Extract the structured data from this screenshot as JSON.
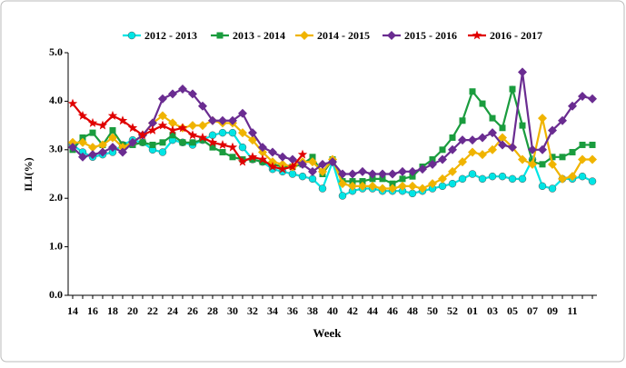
{
  "chart_data": {
    "type": "line",
    "x_label": "Week",
    "y_label": "ILI(%)",
    "categories": [
      "14",
      null,
      "16",
      null,
      "18",
      null,
      "20",
      null,
      "22",
      null,
      "24",
      null,
      "26",
      null,
      "28",
      null,
      "30",
      null,
      "32",
      null,
      "34",
      null,
      "36",
      null,
      "38",
      null,
      "40",
      null,
      "42",
      null,
      "44",
      null,
      "46",
      null,
      "48",
      null,
      "50",
      null,
      "52",
      null,
      "01",
      null,
      "03",
      null,
      "05",
      null,
      "07",
      null,
      "09",
      null,
      "11",
      null,
      null
    ],
    "ylim": [
      0,
      5
    ],
    "yticks": [
      {
        "value": 0,
        "label": "0.0"
      },
      {
        "value": 1,
        "label": "1.0"
      },
      {
        "value": 2,
        "label": "2.0"
      },
      {
        "value": 3,
        "label": "3.0"
      },
      {
        "value": 4,
        "label": "4.0"
      },
      {
        "value": 5,
        "label": "5.0"
      }
    ],
    "series": [
      {
        "name": "2012 - 2013",
        "color": "#00e5e5",
        "marker": "circle",
        "values": [
          3.1,
          2.95,
          2.85,
          2.9,
          2.95,
          3.1,
          3.2,
          3.15,
          3.0,
          2.95,
          3.2,
          3.15,
          3.1,
          3.2,
          3.3,
          3.35,
          3.35,
          3.05,
          2.8,
          2.75,
          2.6,
          2.55,
          2.5,
          2.45,
          2.4,
          2.2,
          2.75,
          2.05,
          2.15,
          2.2,
          2.2,
          2.15,
          2.15,
          2.15,
          2.1,
          2.15,
          2.2,
          2.25,
          2.3,
          2.4,
          2.5,
          2.4,
          2.45,
          2.45,
          2.4,
          2.4,
          2.8,
          2.25,
          2.2,
          2.4,
          2.4,
          2.45,
          2.35
        ]
      },
      {
        "name": "2013 - 2014",
        "color": "#1a9c3e",
        "marker": "square",
        "values": [
          3.0,
          3.25,
          3.35,
          3.1,
          3.4,
          3.1,
          3.1,
          3.15,
          3.1,
          3.15,
          3.3,
          3.15,
          3.15,
          3.2,
          3.05,
          2.95,
          2.85,
          2.8,
          2.8,
          2.75,
          2.7,
          2.65,
          2.65,
          2.7,
          2.85,
          2.5,
          2.8,
          2.35,
          2.35,
          2.35,
          2.4,
          2.4,
          2.3,
          2.4,
          2.45,
          2.65,
          2.8,
          3.0,
          3.25,
          3.6,
          4.2,
          3.95,
          3.65,
          3.45,
          4.25,
          3.5,
          2.75,
          2.7,
          2.85,
          2.85,
          2.95,
          3.1,
          3.1
        ]
      },
      {
        "name": "2014 - 2015",
        "color": "#f0b400",
        "marker": "diamond",
        "values": [
          3.15,
          3.15,
          3.05,
          3.1,
          3.25,
          3.05,
          3.15,
          3.3,
          3.55,
          3.7,
          3.55,
          3.45,
          3.5,
          3.5,
          3.6,
          3.55,
          3.55,
          3.35,
          3.2,
          2.95,
          2.75,
          2.7,
          2.65,
          2.75,
          2.75,
          2.55,
          2.8,
          2.3,
          2.25,
          2.25,
          2.25,
          2.2,
          2.2,
          2.25,
          2.25,
          2.2,
          2.3,
          2.4,
          2.55,
          2.75,
          2.95,
          2.9,
          3.0,
          3.25,
          3.05,
          2.8,
          2.7,
          3.65,
          2.7,
          2.4,
          2.45,
          2.8,
          2.8
        ]
      },
      {
        "name": "2015 - 2016",
        "color": "#6a2c91",
        "marker": "diamond",
        "values": [
          3.05,
          2.85,
          2.9,
          2.95,
          3.05,
          2.95,
          3.15,
          3.3,
          3.55,
          4.05,
          4.15,
          4.25,
          4.15,
          3.9,
          3.6,
          3.6,
          3.6,
          3.75,
          3.35,
          3.05,
          2.95,
          2.85,
          2.8,
          2.7,
          2.55,
          2.7,
          2.75,
          2.5,
          2.5,
          2.55,
          2.5,
          2.5,
          2.5,
          2.55,
          2.55,
          2.6,
          2.7,
          2.8,
          3.0,
          3.2,
          3.2,
          3.25,
          3.35,
          3.1,
          3.05,
          4.6,
          3.0,
          3.0,
          3.4,
          3.6,
          3.9,
          4.1,
          4.05
        ]
      },
      {
        "name": "2016 - 2017",
        "color": "#e00000",
        "marker": "star",
        "values": [
          3.95,
          3.7,
          3.55,
          3.5,
          3.7,
          3.6,
          3.45,
          3.3,
          3.4,
          3.5,
          3.4,
          3.45,
          3.3,
          3.25,
          3.15,
          3.1,
          3.05,
          2.75,
          2.85,
          2.8,
          2.65,
          2.6,
          2.65,
          2.9,
          null,
          null,
          null,
          null,
          null,
          null,
          null,
          null,
          null,
          null,
          null,
          null,
          null,
          null,
          null,
          null,
          null,
          null,
          null,
          null,
          null,
          null,
          null,
          null,
          null,
          null,
          null,
          null,
          null
        ]
      }
    ]
  }
}
